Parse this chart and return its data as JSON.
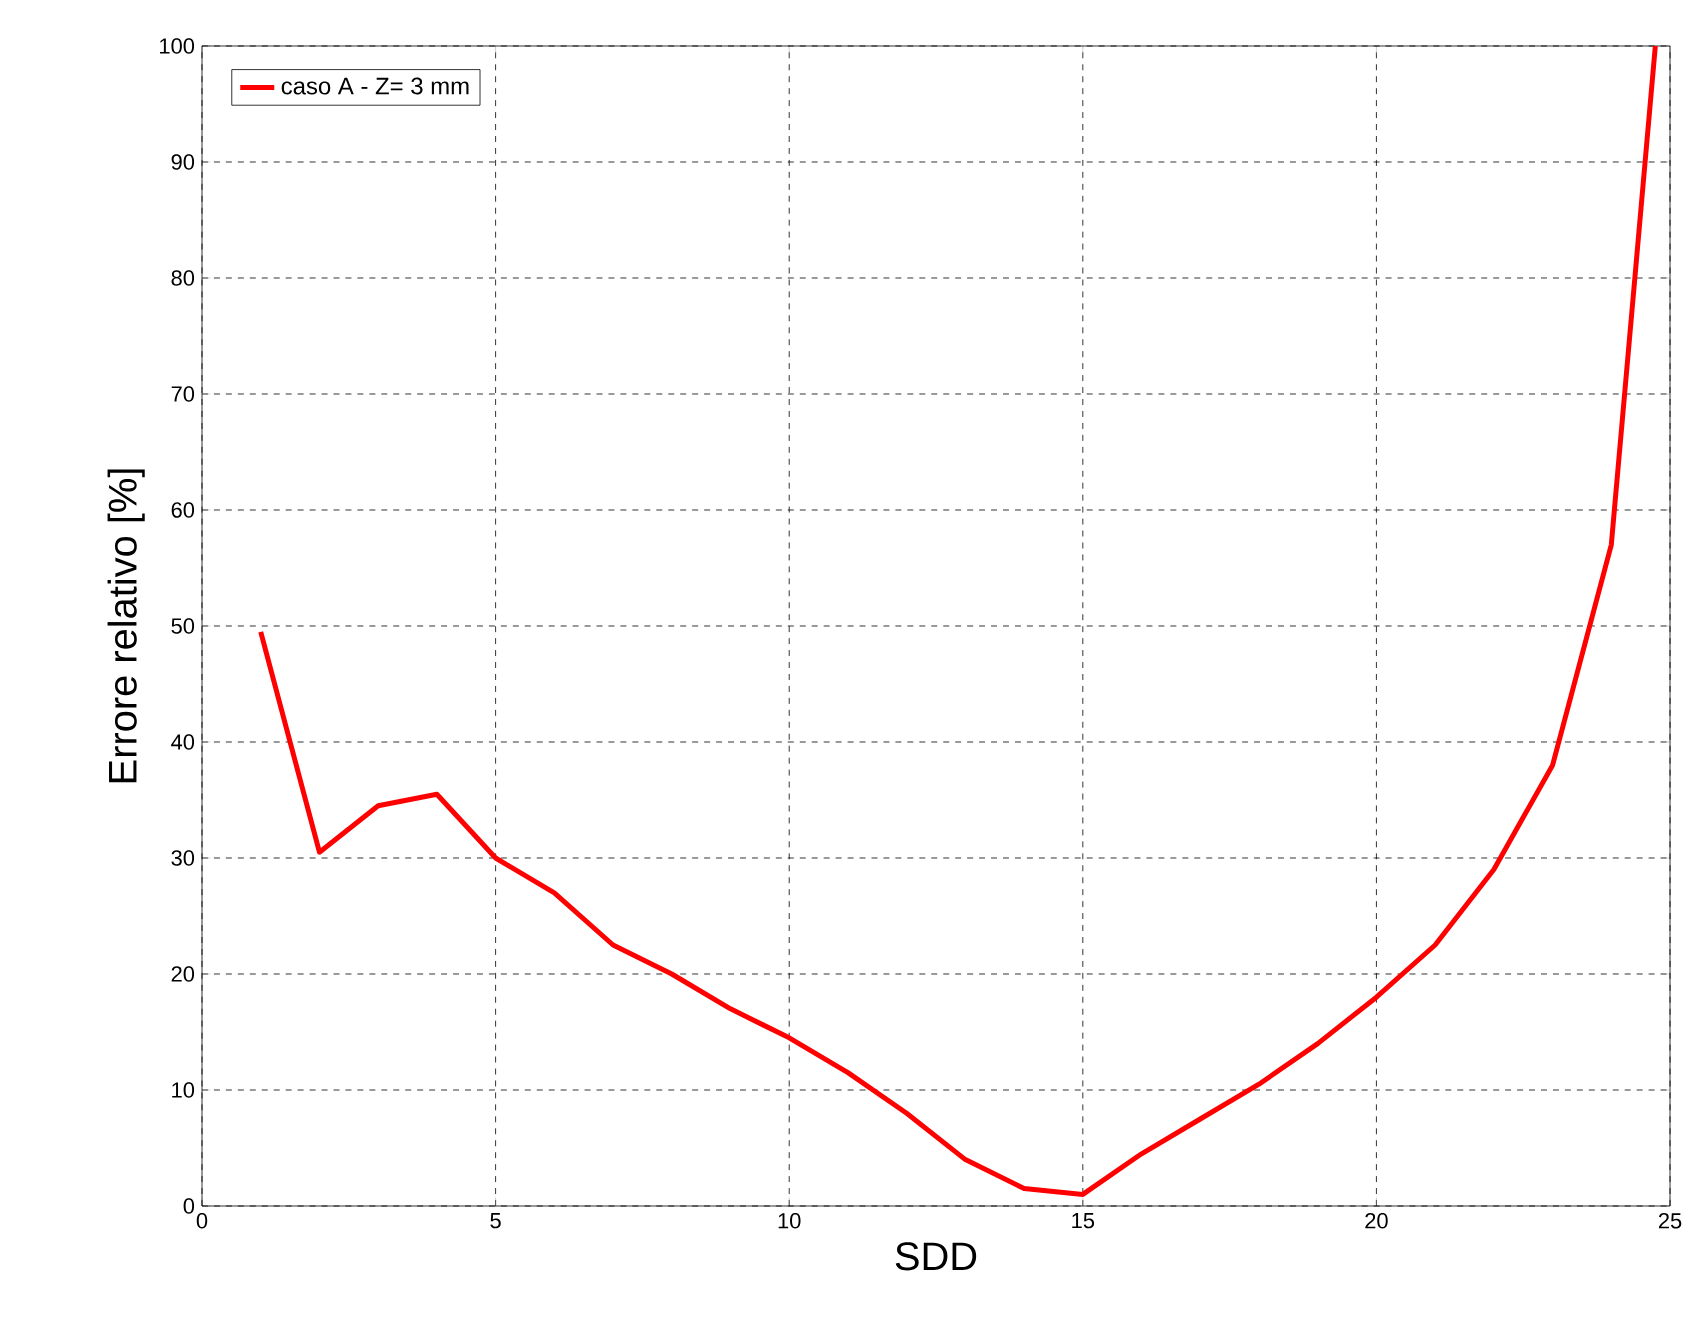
{
  "chart_data": {
    "type": "line",
    "xlabel": "SDD",
    "ylabel": "Errore relativo [%]",
    "xlim": [
      0,
      25
    ],
    "xticks": [
      0,
      5,
      10,
      15,
      20,
      25
    ],
    "ylim": [
      0,
      100
    ],
    "yticks": [
      0,
      10,
      20,
      30,
      40,
      50,
      60,
      70,
      80,
      90,
      100
    ],
    "grid": true,
    "legend": "top left",
    "marker": "none",
    "line_style": "solid",
    "series": [
      {
        "name": "caso A - Z= 3 mm",
        "color": "#ff0000",
        "x": [
          1,
          2,
          3,
          4,
          5,
          6,
          7,
          8,
          9,
          10,
          11,
          12,
          13,
          14,
          15,
          16,
          17,
          18,
          19,
          20,
          21,
          22,
          23,
          24,
          24.75
        ],
        "values": [
          49.5,
          30.5,
          34.5,
          35.5,
          30,
          27,
          22.5,
          20,
          17,
          14.5,
          11.5,
          8,
          4,
          1.5,
          1,
          4.5,
          7.5,
          10.5,
          14,
          18,
          22.5,
          29,
          38,
          57,
          100
        ]
      }
    ]
  }
}
